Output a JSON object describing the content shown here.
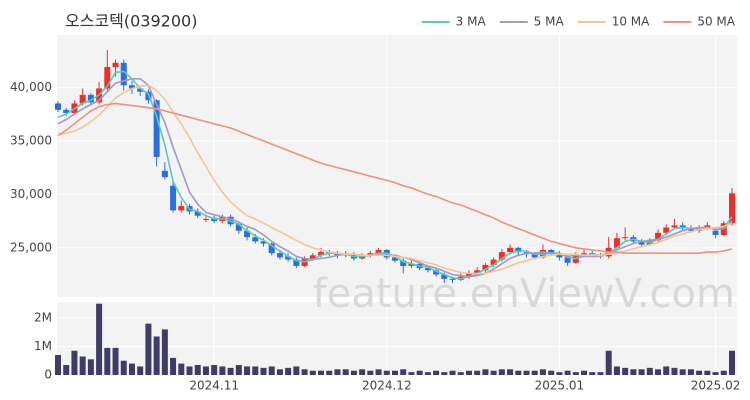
{
  "watermark": "feature.enViewV.com",
  "chart_data": [
    {
      "type": "candlestick",
      "title": "오스코텍(039200)",
      "legend": "top-right",
      "up_color": "#e8312f",
      "down_color": "#2b6fde",
      "ylim": [
        20400,
        44900
      ],
      "yticks": [
        {
          "value": 25000,
          "label": "25,000"
        },
        {
          "value": 30000,
          "label": "30,000"
        },
        {
          "value": 35000,
          "label": "35,000"
        },
        {
          "value": 40000,
          "label": "40,000"
        }
      ],
      "ohlc": [
        [
          38500,
          38700,
          37700,
          37900
        ],
        [
          37900,
          38100,
          37300,
          37600
        ],
        [
          37600,
          38800,
          37400,
          38500
        ],
        [
          38500,
          39900,
          38300,
          39300
        ],
        [
          39300,
          39500,
          38300,
          38600
        ],
        [
          38600,
          40500,
          38400,
          39900
        ],
        [
          39900,
          43500,
          39600,
          41900
        ],
        [
          41900,
          42600,
          41000,
          42300
        ],
        [
          42300,
          42600,
          39700,
          40200
        ],
        [
          40200,
          40600,
          39400,
          39900
        ],
        [
          39900,
          40100,
          39200,
          39600
        ],
        [
          39600,
          39800,
          38500,
          38800
        ],
        [
          38800,
          38900,
          32600,
          33500
        ],
        [
          32200,
          33000,
          31400,
          31600
        ],
        [
          30800,
          31200,
          28300,
          28500
        ],
        [
          28500,
          29400,
          28300,
          28900
        ],
        [
          28900,
          29100,
          28100,
          28400
        ],
        [
          28400,
          28700,
          27800,
          28000
        ],
        [
          27600,
          28100,
          27400,
          27700
        ],
        [
          27800,
          28000,
          27300,
          27500
        ],
        [
          27500,
          28100,
          27300,
          27900
        ],
        [
          27900,
          28100,
          27000,
          27200
        ],
        [
          27200,
          27400,
          26300,
          26600
        ],
        [
          26600,
          26900,
          25700,
          26000
        ],
        [
          26000,
          26300,
          25400,
          25600
        ],
        [
          25600,
          25900,
          25100,
          25400
        ],
        [
          25400,
          25500,
          24300,
          24500
        ],
        [
          24500,
          24800,
          23900,
          24100
        ],
        [
          24200,
          24500,
          23700,
          23900
        ],
        [
          23900,
          24100,
          23100,
          23300
        ],
        [
          23300,
          24200,
          23200,
          24000
        ],
        [
          24000,
          24500,
          23800,
          24300
        ],
        [
          24300,
          25000,
          24100,
          24600
        ],
        [
          24600,
          24800,
          24200,
          24500
        ],
        [
          24500,
          24700,
          24000,
          24300
        ],
        [
          24300,
          24700,
          24100,
          24400
        ],
        [
          24400,
          24600,
          23800,
          24000
        ],
        [
          24000,
          24500,
          23900,
          24300
        ],
        [
          24300,
          24700,
          24100,
          24500
        ],
        [
          24500,
          25000,
          24300,
          24800
        ],
        [
          24800,
          24900,
          23900,
          24100
        ],
        [
          24100,
          24300,
          23600,
          23800
        ],
        [
          23800,
          24000,
          22600,
          23300
        ],
        [
          23300,
          23800,
          23100,
          23500
        ],
        [
          23500,
          23700,
          22900,
          23100
        ],
        [
          23100,
          23300,
          22700,
          22900
        ],
        [
          22900,
          23100,
          22300,
          22500
        ],
        [
          22500,
          22700,
          21700,
          22100
        ],
        [
          22100,
          22300,
          21700,
          22000
        ],
        [
          22000,
          22600,
          21900,
          22300
        ],
        [
          22300,
          22900,
          22100,
          22600
        ],
        [
          22600,
          23200,
          22400,
          22900
        ],
        [
          22900,
          23600,
          22700,
          23400
        ],
        [
          23400,
          24100,
          23200,
          23900
        ],
        [
          23900,
          24900,
          23700,
          24600
        ],
        [
          24600,
          25300,
          24400,
          25000
        ],
        [
          25000,
          25100,
          24300,
          24600
        ],
        [
          24600,
          24800,
          24100,
          24400
        ],
        [
          24400,
          24600,
          23900,
          24100
        ],
        [
          24100,
          25300,
          24000,
          24800
        ],
        [
          24800,
          24900,
          24300,
          24500
        ],
        [
          24500,
          24700,
          23800,
          24100
        ],
        [
          24100,
          24300,
          23300,
          23600
        ],
        [
          23600,
          24600,
          23500,
          24400
        ],
        [
          24400,
          24800,
          24200,
          24500
        ],
        [
          24500,
          24700,
          24100,
          24300
        ],
        [
          24300,
          24500,
          24000,
          24200
        ],
        [
          24200,
          26000,
          24000,
          25000
        ],
        [
          25000,
          26400,
          24900,
          25900
        ],
        [
          25900,
          26900,
          25700,
          26000
        ],
        [
          26000,
          26200,
          25400,
          25600
        ],
        [
          25600,
          25800,
          25100,
          25300
        ],
        [
          25300,
          25900,
          25200,
          25700
        ],
        [
          25700,
          26700,
          25600,
          26400
        ],
        [
          26400,
          27200,
          26200,
          26900
        ],
        [
          26900,
          27700,
          26800,
          27100
        ],
        [
          27100,
          27400,
          26600,
          26800
        ],
        [
          26800,
          27100,
          26400,
          26600
        ],
        [
          26600,
          27100,
          26400,
          26900
        ],
        [
          26900,
          27400,
          26700,
          27100
        ],
        [
          26600,
          26800,
          25900,
          26200
        ],
        [
          26200,
          27500,
          26100,
          27300
        ],
        [
          27300,
          30600,
          27100,
          30100
        ]
      ],
      "series": [
        {
          "name": "3 MA",
          "color": "#5cc9b8",
          "values": [
            37200,
            37500,
            38000,
            38500,
            38800,
            39300,
            40100,
            41400,
            41500,
            40800,
            39900,
            39400,
            37300,
            34600,
            31200,
            29700,
            28600,
            28400,
            28000,
            27700,
            27700,
            27500,
            27200,
            26600,
            26100,
            25700,
            25200,
            24700,
            24200,
            23800,
            23700,
            23900,
            24300,
            24500,
            24500,
            24400,
            24200,
            24200,
            24300,
            24500,
            24500,
            24200,
            23700,
            23500,
            23300,
            23200,
            22800,
            22500,
            22200,
            22100,
            22300,
            22600,
            23000,
            23400,
            24000,
            24500,
            24700,
            24700,
            24400,
            24400,
            24500,
            24500,
            24100,
            24000,
            24200,
            24400,
            24300,
            24500,
            25000,
            25600,
            25800,
            25600,
            25500,
            25800,
            26300,
            26800,
            26900,
            26800,
            26800,
            26900,
            26700,
            26900,
            27900
          ]
        },
        {
          "name": "5 MA",
          "color": "#a896c8",
          "values": [
            36600,
            37000,
            37500,
            38000,
            38400,
            38800,
            39600,
            40400,
            40600,
            40800,
            40800,
            40200,
            38400,
            36700,
            34400,
            32300,
            30200,
            29100,
            28300,
            28100,
            27900,
            27700,
            27400,
            27000,
            26700,
            26200,
            25600,
            25100,
            24700,
            24200,
            24000,
            23900,
            24000,
            24100,
            24300,
            24400,
            24400,
            24300,
            24300,
            24400,
            24300,
            24300,
            24100,
            23900,
            23600,
            23300,
            23100,
            22800,
            22500,
            22400,
            22300,
            22400,
            22600,
            23000,
            23500,
            24000,
            24300,
            24500,
            24500,
            24600,
            24500,
            24400,
            24200,
            24300,
            24200,
            24200,
            24200,
            24500,
            24800,
            25100,
            25400,
            25600,
            25700,
            25800,
            26000,
            26300,
            26600,
            26800,
            26900,
            26900,
            26700,
            26800,
            27500
          ]
        },
        {
          "name": "10 MA",
          "color": "#f2c595",
          "values": [
            35600,
            35700,
            35900,
            36300,
            36800,
            37400,
            38200,
            39000,
            39500,
            39900,
            40100,
            40200,
            39700,
            38900,
            37700,
            36600,
            35300,
            33900,
            32600,
            31300,
            30200,
            29300,
            28600,
            28000,
            27700,
            27300,
            26900,
            26500,
            26100,
            25700,
            25300,
            25000,
            24800,
            24600,
            24500,
            24400,
            24400,
            24300,
            24300,
            24300,
            24300,
            24200,
            24100,
            24000,
            23800,
            23600,
            23400,
            23100,
            22900,
            22700,
            22600,
            22600,
            22600,
            22800,
            23000,
            23300,
            23600,
            23800,
            24000,
            24200,
            24300,
            24400,
            24400,
            24400,
            24300,
            24300,
            24300,
            24400,
            24500,
            24700,
            24900,
            25100,
            25300,
            25500,
            25800,
            26100,
            26300,
            26500,
            26700,
            26800,
            26900,
            27000,
            27300
          ]
        },
        {
          "name": "50 MA",
          "color": "#f0907e",
          "values": [
            35500,
            36000,
            36600,
            37200,
            37800,
            38200,
            38400,
            38500,
            38400,
            38300,
            38200,
            38100,
            38000,
            37800,
            37600,
            37400,
            37200,
            37000,
            36800,
            36600,
            36400,
            36200,
            35900,
            35600,
            35300,
            35000,
            34700,
            34400,
            34100,
            33800,
            33500,
            33200,
            32900,
            32700,
            32500,
            32300,
            32100,
            31900,
            31700,
            31500,
            31300,
            31100,
            30800,
            30600,
            30300,
            30000,
            29800,
            29500,
            29200,
            29000,
            28700,
            28400,
            28100,
            27800,
            27400,
            27100,
            26800,
            26500,
            26200,
            25900,
            25600,
            25400,
            25200,
            25000,
            24900,
            24800,
            24700,
            24600,
            24600,
            24500,
            24500,
            24500,
            24500,
            24500,
            24500,
            24500,
            24500,
            24500,
            24500,
            24600,
            24600,
            24700,
            24900
          ]
        }
      ]
    },
    {
      "type": "bar",
      "color": "#3f3d66",
      "ylim": [
        0,
        2560000
      ],
      "yticks": [
        0,
        {
          "value": 1000000,
          "label": "1M"
        },
        {
          "value": 2000000,
          "label": "2M"
        }
      ],
      "categories": [
        null,
        null,
        null,
        null,
        null,
        null,
        null,
        null,
        null,
        null,
        null,
        null,
        null,
        null,
        null,
        null,
        null,
        null,
        null,
        "2024.11",
        null,
        null,
        null,
        null,
        null,
        null,
        null,
        null,
        null,
        null,
        null,
        null,
        null,
        null,
        null,
        null,
        null,
        null,
        null,
        null,
        "2024.12",
        null,
        null,
        null,
        null,
        null,
        null,
        null,
        null,
        null,
        null,
        null,
        null,
        null,
        null,
        null,
        null,
        null,
        null,
        null,
        null,
        "2025.01",
        null,
        null,
        null,
        null,
        null,
        null,
        null,
        null,
        null,
        null,
        null,
        null,
        null,
        null,
        null,
        null,
        null,
        null,
        "2025.02",
        null,
        null
      ],
      "values": [
        700000,
        350000,
        850000,
        650000,
        550000,
        2500000,
        950000,
        950000,
        500000,
        400000,
        300000,
        1800000,
        1350000,
        1600000,
        600000,
        400000,
        300000,
        350000,
        300000,
        350000,
        300000,
        250000,
        350000,
        300000,
        300000,
        250000,
        300000,
        200000,
        250000,
        300000,
        200000,
        150000,
        150000,
        150000,
        200000,
        200000,
        150000,
        200000,
        150000,
        200000,
        150000,
        150000,
        200000,
        100000,
        150000,
        100000,
        150000,
        100000,
        150000,
        100000,
        150000,
        150000,
        200000,
        150000,
        200000,
        200000,
        150000,
        150000,
        150000,
        200000,
        150000,
        100000,
        150000,
        100000,
        150000,
        100000,
        100000,
        850000,
        300000,
        250000,
        200000,
        200000,
        250000,
        200000,
        300000,
        250000,
        200000,
        200000,
        150000,
        150000,
        100000,
        150000,
        850000
      ]
    }
  ]
}
